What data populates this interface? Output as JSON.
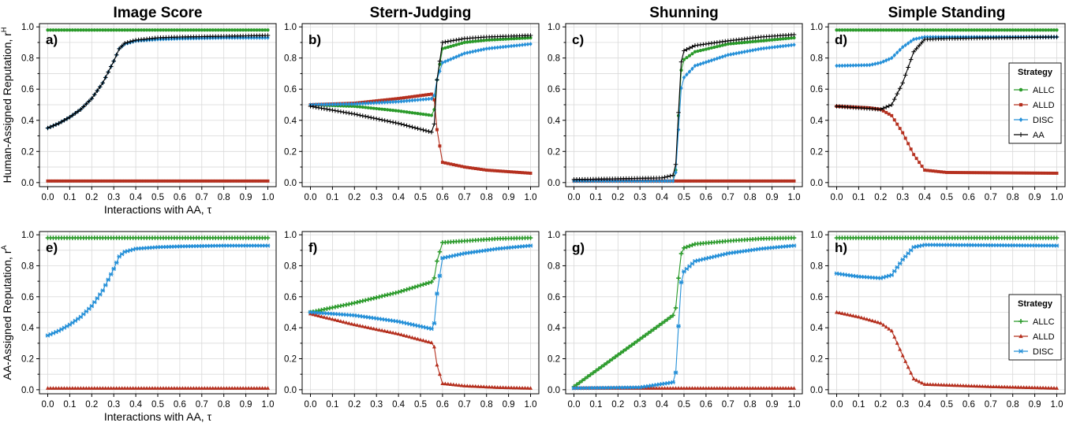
{
  "figure": {
    "columns": [
      "Image Score",
      "Stern-Judging",
      "Shunning",
      "Simple Standing"
    ],
    "row_ylabels": [
      "Human-Assigned Reputation, r",
      "AA-Assigned Reputation, r"
    ],
    "row_ylabel_sups": [
      "H",
      "A"
    ],
    "xlabel": "Interactions with AA, τ",
    "legend_title": "Strategy",
    "x_ticks": [
      "0.0",
      "0.1",
      "0.2",
      "0.3",
      "0.4",
      "0.5",
      "0.6",
      "0.7",
      "0.8",
      "0.9",
      "1.0"
    ],
    "y_ticks": [
      "0.0",
      "0.2",
      "0.4",
      "0.6",
      "0.8",
      "1.0"
    ]
  },
  "colors": {
    "ALLC": "#2a9a2a",
    "ALLD": "#b5301f",
    "DISC": "#2590d8",
    "AA": "#000000"
  },
  "chart_data": [
    {
      "type": "line",
      "panel": "a)",
      "row": 0,
      "col": 0,
      "title": "Image Score",
      "xlim": [
        0,
        1
      ],
      "ylim": [
        0,
        1
      ],
      "grid": true,
      "series": [
        {
          "name": "ALLC",
          "marker": "circle",
          "kp": [
            [
              0,
              0.98
            ],
            [
              1,
              0.98
            ]
          ]
        },
        {
          "name": "ALLD",
          "marker": "square",
          "kp": [
            [
              0,
              0.01
            ],
            [
              1,
              0.01
            ]
          ]
        },
        {
          "name": "DISC",
          "marker": "diamond",
          "kp": [
            [
              0,
              0.35
            ],
            [
              0.05,
              0.38
            ],
            [
              0.1,
              0.42
            ],
            [
              0.15,
              0.47
            ],
            [
              0.2,
              0.54
            ],
            [
              0.25,
              0.64
            ],
            [
              0.3,
              0.78
            ],
            [
              0.325,
              0.86
            ],
            [
              0.35,
              0.89
            ],
            [
              0.4,
              0.91
            ],
            [
              0.5,
              0.92
            ],
            [
              0.6,
              0.925
            ],
            [
              0.8,
              0.93
            ],
            [
              1,
              0.93
            ]
          ]
        },
        {
          "name": "AA",
          "marker": "plus",
          "kp": [
            [
              0,
              0.35
            ],
            [
              0.05,
              0.38
            ],
            [
              0.1,
              0.42
            ],
            [
              0.15,
              0.47
            ],
            [
              0.2,
              0.54
            ],
            [
              0.25,
              0.64
            ],
            [
              0.3,
              0.78
            ],
            [
              0.325,
              0.86
            ],
            [
              0.35,
              0.895
            ],
            [
              0.4,
              0.915
            ],
            [
              0.5,
              0.93
            ],
            [
              0.6,
              0.935
            ],
            [
              0.8,
              0.94
            ],
            [
              1,
              0.945
            ]
          ]
        }
      ]
    },
    {
      "type": "line",
      "panel": "b)",
      "row": 0,
      "col": 1,
      "title": "Stern-Judging",
      "xlim": [
        0,
        1
      ],
      "ylim": [
        0,
        1
      ],
      "grid": true,
      "series": [
        {
          "name": "ALLC",
          "marker": "circle",
          "kp": [
            [
              0,
              0.5
            ],
            [
              0.2,
              0.49
            ],
            [
              0.4,
              0.46
            ],
            [
              0.56,
              0.43
            ],
            [
              0.575,
              0.66
            ],
            [
              0.6,
              0.86
            ],
            [
              0.7,
              0.9
            ],
            [
              0.8,
              0.915
            ],
            [
              1,
              0.93
            ]
          ]
        },
        {
          "name": "ALLD",
          "marker": "square",
          "kp": [
            [
              0,
              0.5
            ],
            [
              0.2,
              0.51
            ],
            [
              0.4,
              0.54
            ],
            [
              0.56,
              0.57
            ],
            [
              0.575,
              0.34
            ],
            [
              0.6,
              0.13
            ],
            [
              0.7,
              0.1
            ],
            [
              0.8,
              0.08
            ],
            [
              1,
              0.06
            ]
          ]
        },
        {
          "name": "DISC",
          "marker": "diamond",
          "kp": [
            [
              0,
              0.5
            ],
            [
              0.2,
              0.505
            ],
            [
              0.4,
              0.52
            ],
            [
              0.56,
              0.54
            ],
            [
              0.575,
              0.66
            ],
            [
              0.6,
              0.77
            ],
            [
              0.7,
              0.83
            ],
            [
              0.8,
              0.86
            ],
            [
              1,
              0.89
            ]
          ]
        },
        {
          "name": "AA",
          "marker": "plus",
          "kp": [
            [
              0,
              0.49
            ],
            [
              0.2,
              0.44
            ],
            [
              0.4,
              0.38
            ],
            [
              0.56,
              0.32
            ],
            [
              0.575,
              0.66
            ],
            [
              0.6,
              0.9
            ],
            [
              0.7,
              0.925
            ],
            [
              0.8,
              0.935
            ],
            [
              1,
              0.945
            ]
          ]
        }
      ]
    },
    {
      "type": "line",
      "panel": "c)",
      "row": 0,
      "col": 2,
      "title": "Shunning",
      "xlim": [
        0,
        1
      ],
      "ylim": [
        0,
        1
      ],
      "grid": true,
      "series": [
        {
          "name": "ALLC",
          "marker": "circle",
          "kp": [
            [
              0,
              0.01
            ],
            [
              0.46,
              0.01
            ],
            [
              0.475,
              0.43
            ],
            [
              0.49,
              0.78
            ],
            [
              0.55,
              0.84
            ],
            [
              0.7,
              0.89
            ],
            [
              0.85,
              0.91
            ],
            [
              1,
              0.93
            ]
          ]
        },
        {
          "name": "ALLD",
          "marker": "square",
          "kp": [
            [
              0,
              0.01
            ],
            [
              1,
              0.01
            ]
          ]
        },
        {
          "name": "DISC",
          "marker": "diamond",
          "kp": [
            [
              0,
              0.01
            ],
            [
              0.46,
              0.01
            ],
            [
              0.475,
              0.34
            ],
            [
              0.49,
              0.66
            ],
            [
              0.55,
              0.75
            ],
            [
              0.7,
              0.82
            ],
            [
              0.85,
              0.86
            ],
            [
              1,
              0.885
            ]
          ]
        },
        {
          "name": "AA",
          "marker": "plus",
          "kp": [
            [
              0,
              0.02
            ],
            [
              0.2,
              0.025
            ],
            [
              0.4,
              0.03
            ],
            [
              0.46,
              0.05
            ],
            [
              0.475,
              0.45
            ],
            [
              0.49,
              0.84
            ],
            [
              0.55,
              0.88
            ],
            [
              0.7,
              0.91
            ],
            [
              0.85,
              0.935
            ],
            [
              1,
              0.95
            ]
          ]
        }
      ]
    },
    {
      "type": "line",
      "panel": "d)",
      "row": 0,
      "col": 3,
      "title": "Simple Standing",
      "xlim": [
        0,
        1
      ],
      "ylim": [
        0,
        1
      ],
      "grid": true,
      "series": [
        {
          "name": "ALLC",
          "marker": "circle",
          "kp": [
            [
              0,
              0.98
            ],
            [
              1,
              0.98
            ]
          ]
        },
        {
          "name": "ALLD",
          "marker": "square",
          "kp": [
            [
              0,
              0.49
            ],
            [
              0.15,
              0.48
            ],
            [
              0.2,
              0.47
            ],
            [
              0.25,
              0.43
            ],
            [
              0.3,
              0.32
            ],
            [
              0.35,
              0.18
            ],
            [
              0.4,
              0.08
            ],
            [
              0.5,
              0.065
            ],
            [
              1,
              0.06
            ]
          ]
        },
        {
          "name": "DISC",
          "marker": "diamond",
          "kp": [
            [
              0,
              0.75
            ],
            [
              0.15,
              0.755
            ],
            [
              0.2,
              0.77
            ],
            [
              0.25,
              0.8
            ],
            [
              0.3,
              0.87
            ],
            [
              0.35,
              0.92
            ],
            [
              0.4,
              0.935
            ],
            [
              1,
              0.935
            ]
          ]
        },
        {
          "name": "AA",
          "marker": "plus",
          "kp": [
            [
              0,
              0.49
            ],
            [
              0.2,
              0.47
            ],
            [
              0.25,
              0.5
            ],
            [
              0.3,
              0.64
            ],
            [
              0.35,
              0.84
            ],
            [
              0.4,
              0.92
            ],
            [
              0.5,
              0.925
            ],
            [
              1,
              0.935
            ]
          ]
        }
      ]
    },
    {
      "type": "line",
      "panel": "e)",
      "row": 1,
      "col": 0,
      "xlim": [
        0,
        1
      ],
      "ylim": [
        0,
        1
      ],
      "grid": true,
      "series": [
        {
          "name": "ALLC",
          "marker": "cross",
          "kp": [
            [
              0,
              0.98
            ],
            [
              1,
              0.98
            ]
          ]
        },
        {
          "name": "ALLD",
          "marker": "triangle",
          "kp": [
            [
              0,
              0.01
            ],
            [
              1,
              0.01
            ]
          ]
        },
        {
          "name": "DISC",
          "marker": "star",
          "kp": [
            [
              0,
              0.35
            ],
            [
              0.05,
              0.38
            ],
            [
              0.1,
              0.42
            ],
            [
              0.15,
              0.47
            ],
            [
              0.2,
              0.54
            ],
            [
              0.25,
              0.64
            ],
            [
              0.3,
              0.78
            ],
            [
              0.325,
              0.86
            ],
            [
              0.35,
              0.89
            ],
            [
              0.4,
              0.91
            ],
            [
              0.5,
              0.92
            ],
            [
              0.6,
              0.925
            ],
            [
              0.8,
              0.93
            ],
            [
              1,
              0.93
            ]
          ]
        }
      ]
    },
    {
      "type": "line",
      "panel": "f)",
      "row": 1,
      "col": 1,
      "xlim": [
        0,
        1
      ],
      "ylim": [
        0,
        1
      ],
      "grid": true,
      "series": [
        {
          "name": "ALLC",
          "marker": "cross",
          "kp": [
            [
              0,
              0.5
            ],
            [
              0.2,
              0.56
            ],
            [
              0.4,
              0.63
            ],
            [
              0.56,
              0.7
            ],
            [
              0.575,
              0.83
            ],
            [
              0.6,
              0.95
            ],
            [
              0.7,
              0.96
            ],
            [
              0.85,
              0.975
            ],
            [
              1,
              0.98
            ]
          ]
        },
        {
          "name": "ALLD",
          "marker": "triangle",
          "kp": [
            [
              0,
              0.49
            ],
            [
              0.2,
              0.42
            ],
            [
              0.4,
              0.36
            ],
            [
              0.56,
              0.3
            ],
            [
              0.575,
              0.16
            ],
            [
              0.6,
              0.04
            ],
            [
              0.7,
              0.025
            ],
            [
              0.85,
              0.015
            ],
            [
              1,
              0.01
            ]
          ]
        },
        {
          "name": "DISC",
          "marker": "star",
          "kp": [
            [
              0,
              0.5
            ],
            [
              0.2,
              0.48
            ],
            [
              0.4,
              0.44
            ],
            [
              0.56,
              0.39
            ],
            [
              0.575,
              0.62
            ],
            [
              0.6,
              0.85
            ],
            [
              0.7,
              0.88
            ],
            [
              0.85,
              0.91
            ],
            [
              1,
              0.93
            ]
          ]
        }
      ]
    },
    {
      "type": "line",
      "panel": "g)",
      "row": 1,
      "col": 2,
      "xlim": [
        0,
        1
      ],
      "ylim": [
        0,
        1
      ],
      "grid": true,
      "series": [
        {
          "name": "ALLC",
          "marker": "cross",
          "kp": [
            [
              0,
              0.02
            ],
            [
              0.46,
              0.49
            ],
            [
              0.475,
              0.72
            ],
            [
              0.49,
              0.91
            ],
            [
              0.55,
              0.94
            ],
            [
              0.7,
              0.96
            ],
            [
              0.85,
              0.975
            ],
            [
              1,
              0.98
            ]
          ]
        },
        {
          "name": "ALLD",
          "marker": "triangle",
          "kp": [
            [
              0,
              0.01
            ],
            [
              1,
              0.01
            ]
          ]
        },
        {
          "name": "DISC",
          "marker": "star",
          "kp": [
            [
              0,
              0.01
            ],
            [
              0.3,
              0.015
            ],
            [
              0.46,
              0.05
            ],
            [
              0.475,
              0.41
            ],
            [
              0.49,
              0.75
            ],
            [
              0.55,
              0.83
            ],
            [
              0.7,
              0.88
            ],
            [
              0.85,
              0.91
            ],
            [
              1,
              0.93
            ]
          ]
        }
      ]
    },
    {
      "type": "line",
      "panel": "h)",
      "row": 1,
      "col": 3,
      "xlim": [
        0,
        1
      ],
      "ylim": [
        0,
        1
      ],
      "grid": true,
      "series": [
        {
          "name": "ALLC",
          "marker": "cross",
          "kp": [
            [
              0,
              0.98
            ],
            [
              1,
              0.98
            ]
          ]
        },
        {
          "name": "ALLD",
          "marker": "triangle",
          "kp": [
            [
              0,
              0.5
            ],
            [
              0.1,
              0.47
            ],
            [
              0.2,
              0.43
            ],
            [
              0.25,
              0.38
            ],
            [
              0.3,
              0.22
            ],
            [
              0.35,
              0.07
            ],
            [
              0.4,
              0.035
            ],
            [
              0.5,
              0.03
            ],
            [
              0.7,
              0.02
            ],
            [
              1,
              0.01
            ]
          ]
        },
        {
          "name": "DISC",
          "marker": "star",
          "kp": [
            [
              0,
              0.75
            ],
            [
              0.1,
              0.73
            ],
            [
              0.2,
              0.72
            ],
            [
              0.25,
              0.74
            ],
            [
              0.3,
              0.84
            ],
            [
              0.35,
              0.92
            ],
            [
              0.4,
              0.935
            ],
            [
              1,
              0.93
            ]
          ]
        }
      ]
    }
  ]
}
